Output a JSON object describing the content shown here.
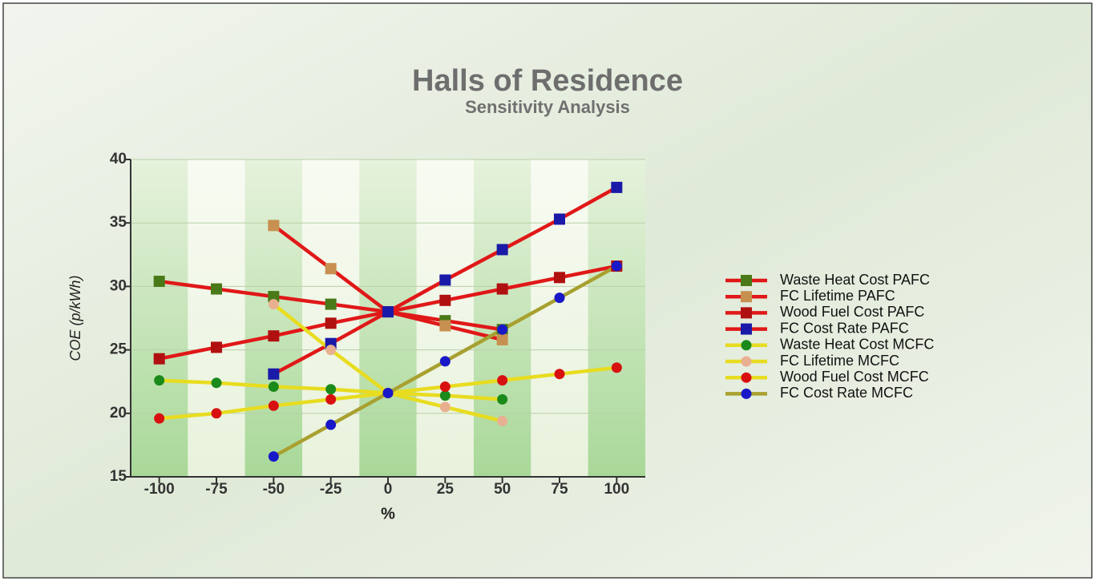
{
  "chart_data": {
    "type": "line",
    "title": "Halls of Residence",
    "subtitle": "Sensitivity Analysis",
    "x_label": "%",
    "y_label": "COE (p/kWh)",
    "x": [
      -100,
      -75,
      -50,
      -25,
      0,
      25,
      50,
      75,
      100
    ],
    "xlim": [
      -112.5,
      112.5
    ],
    "xticks": [
      -100,
      -75,
      -50,
      -25,
      0,
      25,
      50,
      75,
      100
    ],
    "ylim": [
      15,
      40
    ],
    "yticks": [
      15,
      20,
      25,
      30,
      35,
      40
    ],
    "grid": true,
    "legend": "right",
    "series": [
      {
        "name": "Waste Heat Cost PAFC",
        "color": "#e01818",
        "marker_color": "#4a7a18",
        "marker": "square",
        "values": [
          30.4,
          29.8,
          29.2,
          28.6,
          28,
          27.3,
          26.6,
          null,
          null
        ]
      },
      {
        "name": "FC Lifetime PAFC",
        "color": "#e01818",
        "marker_color": "#c89050",
        "marker": "square",
        "values": [
          null,
          null,
          34.8,
          31.4,
          28,
          26.9,
          25.8,
          null,
          null
        ]
      },
      {
        "name": "Wood Fuel Cost PAFC",
        "color": "#e01818",
        "marker_color": "#b01010",
        "marker": "square",
        "values": [
          24.3,
          25.2,
          26.1,
          27.1,
          28,
          28.9,
          29.8,
          30.7,
          31.6
        ]
      },
      {
        "name": "FC Cost Rate PAFC",
        "color": "#e01818",
        "marker_color": "#1a1aa8",
        "marker": "square",
        "values": [
          null,
          null,
          23.1,
          25.5,
          28,
          30.5,
          32.9,
          35.3,
          37.8
        ]
      },
      {
        "name": "Waste Heat Cost MCFC",
        "color": "#e8dc20",
        "marker_color": "#1a8a1a",
        "marker": "circle",
        "values": [
          22.6,
          22.4,
          22.1,
          21.9,
          21.6,
          21.4,
          21.1,
          null,
          null
        ]
      },
      {
        "name": "FC Lifetime MCFC",
        "color": "#e8dc20",
        "marker_color": "#e8b090",
        "marker": "circle",
        "values": [
          null,
          null,
          28.6,
          25,
          21.6,
          20.5,
          19.4,
          null,
          null
        ]
      },
      {
        "name": "Wood Fuel Cost MCFC",
        "color": "#e8dc20",
        "marker_color": "#d81010",
        "marker": "circle",
        "values": [
          19.6,
          20,
          20.6,
          21.1,
          21.6,
          22.1,
          22.6,
          23.1,
          23.6
        ]
      },
      {
        "name": "FC Cost Rate MCFC",
        "color": "#a8a030",
        "marker_color": "#1818c8",
        "marker": "circle",
        "values": [
          null,
          null,
          16.6,
          19.1,
          21.6,
          24.1,
          26.6,
          29.1,
          31.6
        ]
      }
    ]
  }
}
